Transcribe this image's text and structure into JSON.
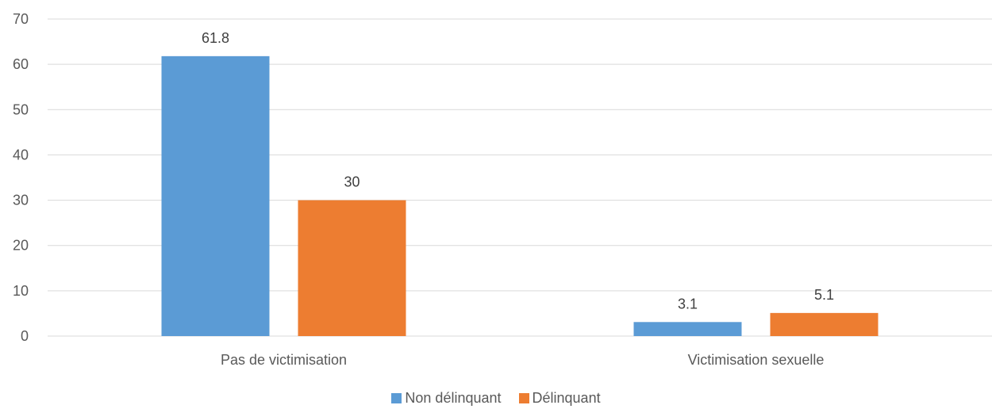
{
  "chart_data": {
    "type": "bar",
    "categories": [
      "Pas de victimisation",
      "Victimisation sexuelle"
    ],
    "series": [
      {
        "name": "Non délinquant",
        "values": [
          61.8,
          3.1
        ],
        "color": "#5B9BD5"
      },
      {
        "name": "Délinquant",
        "values": [
          30,
          5.1
        ],
        "color": "#ED7D31"
      }
    ],
    "data_labels": [
      [
        "61.8",
        "3.1"
      ],
      [
        "30",
        "5.1"
      ]
    ],
    "ylim": [
      0,
      70
    ],
    "yticks": [
      0,
      10,
      20,
      30,
      40,
      50,
      60,
      70
    ],
    "grid": true,
    "legend_position": "bottom",
    "gridline_color": "#D9D9D9",
    "title": "",
    "xlabel": "",
    "ylabel": ""
  }
}
